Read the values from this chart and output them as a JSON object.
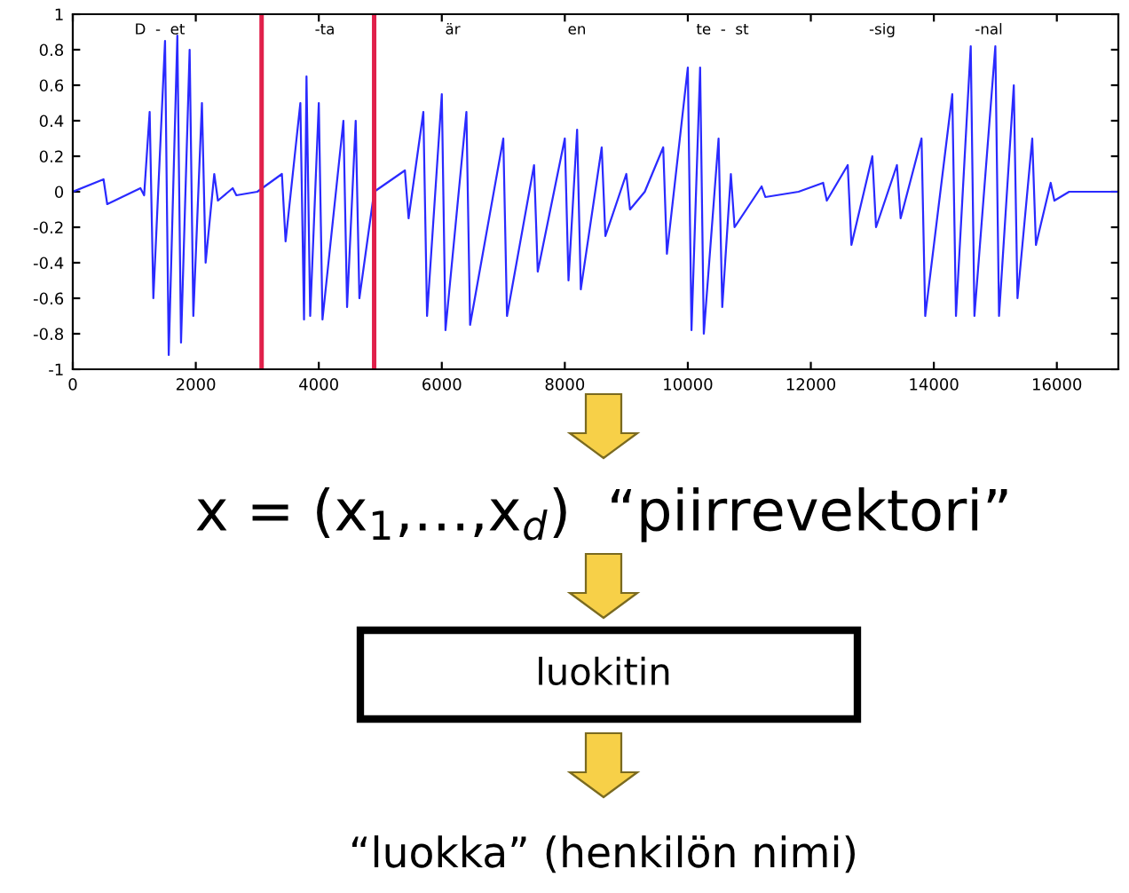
{
  "chart_data": {
    "type": "line",
    "x": [
      0,
      500,
      560,
      1100,
      1160,
      1250,
      1310,
      1500,
      1560,
      1700,
      1760,
      1900,
      1960,
      2100,
      2160,
      2300,
      2360,
      2600,
      2660,
      3000,
      3400,
      3460,
      3700,
      3760,
      3800,
      3860,
      4000,
      4060,
      4400,
      4460,
      4600,
      4660,
      4900,
      5400,
      5460,
      5700,
      5760,
      6000,
      6060,
      6400,
      6460,
      7000,
      7060,
      7500,
      7560,
      8000,
      8060,
      8200,
      8260,
      8600,
      8660,
      9000,
      9060,
      9300,
      9600,
      9660,
      10000,
      10060,
      10200,
      10260,
      10500,
      10560,
      10700,
      10760,
      11200,
      11260,
      11800,
      12200,
      12260,
      12600,
      12660,
      13000,
      13060,
      13400,
      13460,
      13800,
      13860,
      14300,
      14360,
      14600,
      14660,
      15000,
      15060,
      15300,
      15360,
      15600,
      15660,
      15900,
      15960,
      16200,
      17000
    ],
    "series": [
      {
        "color": "#2a2aff",
        "values": [
          0,
          0.07,
          -0.07,
          0.02,
          -0.02,
          0.45,
          -0.6,
          0.85,
          -0.92,
          0.88,
          -0.85,
          0.8,
          -0.7,
          0.5,
          -0.4,
          0.1,
          -0.05,
          0.02,
          -0.02,
          0,
          0.1,
          -0.28,
          0.5,
          -0.72,
          0.65,
          -0.7,
          0.5,
          -0.72,
          0.4,
          -0.65,
          0.4,
          -0.6,
          0,
          0.12,
          -0.15,
          0.45,
          -0.7,
          0.55,
          -0.78,
          0.45,
          -0.75,
          0.3,
          -0.7,
          0.15,
          -0.45,
          0.3,
          -0.5,
          0.35,
          -0.55,
          0.25,
          -0.25,
          0.1,
          -0.1,
          0,
          0.25,
          -0.35,
          0.7,
          -0.78,
          0.7,
          -0.8,
          0.3,
          -0.65,
          0.1,
          -0.2,
          0.03,
          -0.03,
          0,
          0.05,
          -0.05,
          0.15,
          -0.3,
          0.2,
          -0.2,
          0.15,
          -0.15,
          0.3,
          -0.7,
          0.55,
          -0.7,
          0.82,
          -0.7,
          0.82,
          -0.7,
          0.6,
          -0.6,
          0.3,
          -0.3,
          0.05,
          -0.05,
          0,
          0
        ]
      }
    ],
    "xlim": [
      0,
      17000
    ],
    "xticks": [
      0,
      2000,
      4000,
      6000,
      8000,
      10000,
      12000,
      14000,
      16000
    ],
    "ylim": [
      -1,
      1
    ],
    "yticks": [
      -1,
      -0.8,
      -0.6,
      -0.4,
      -0.2,
      0,
      0.2,
      0.4,
      0.6,
      0.8,
      1
    ],
    "ref_lines": [
      {
        "axis": "x",
        "value": 3070,
        "color": "#e0204a"
      },
      {
        "axis": "x",
        "value": 4900,
        "color": "#e0204a"
      }
    ],
    "annotations": [
      "D  -  et",
      "-ta",
      "är",
      "en",
      "te  -  st",
      "-sig",
      "-nal",
      "x = (x$_{1}$,…,x$_{d}$)  “piirrevektori”",
      "luokitin",
      "“luokka” (henkilön nimi)"
    ],
    "grid": false,
    "legend": false
  }
}
